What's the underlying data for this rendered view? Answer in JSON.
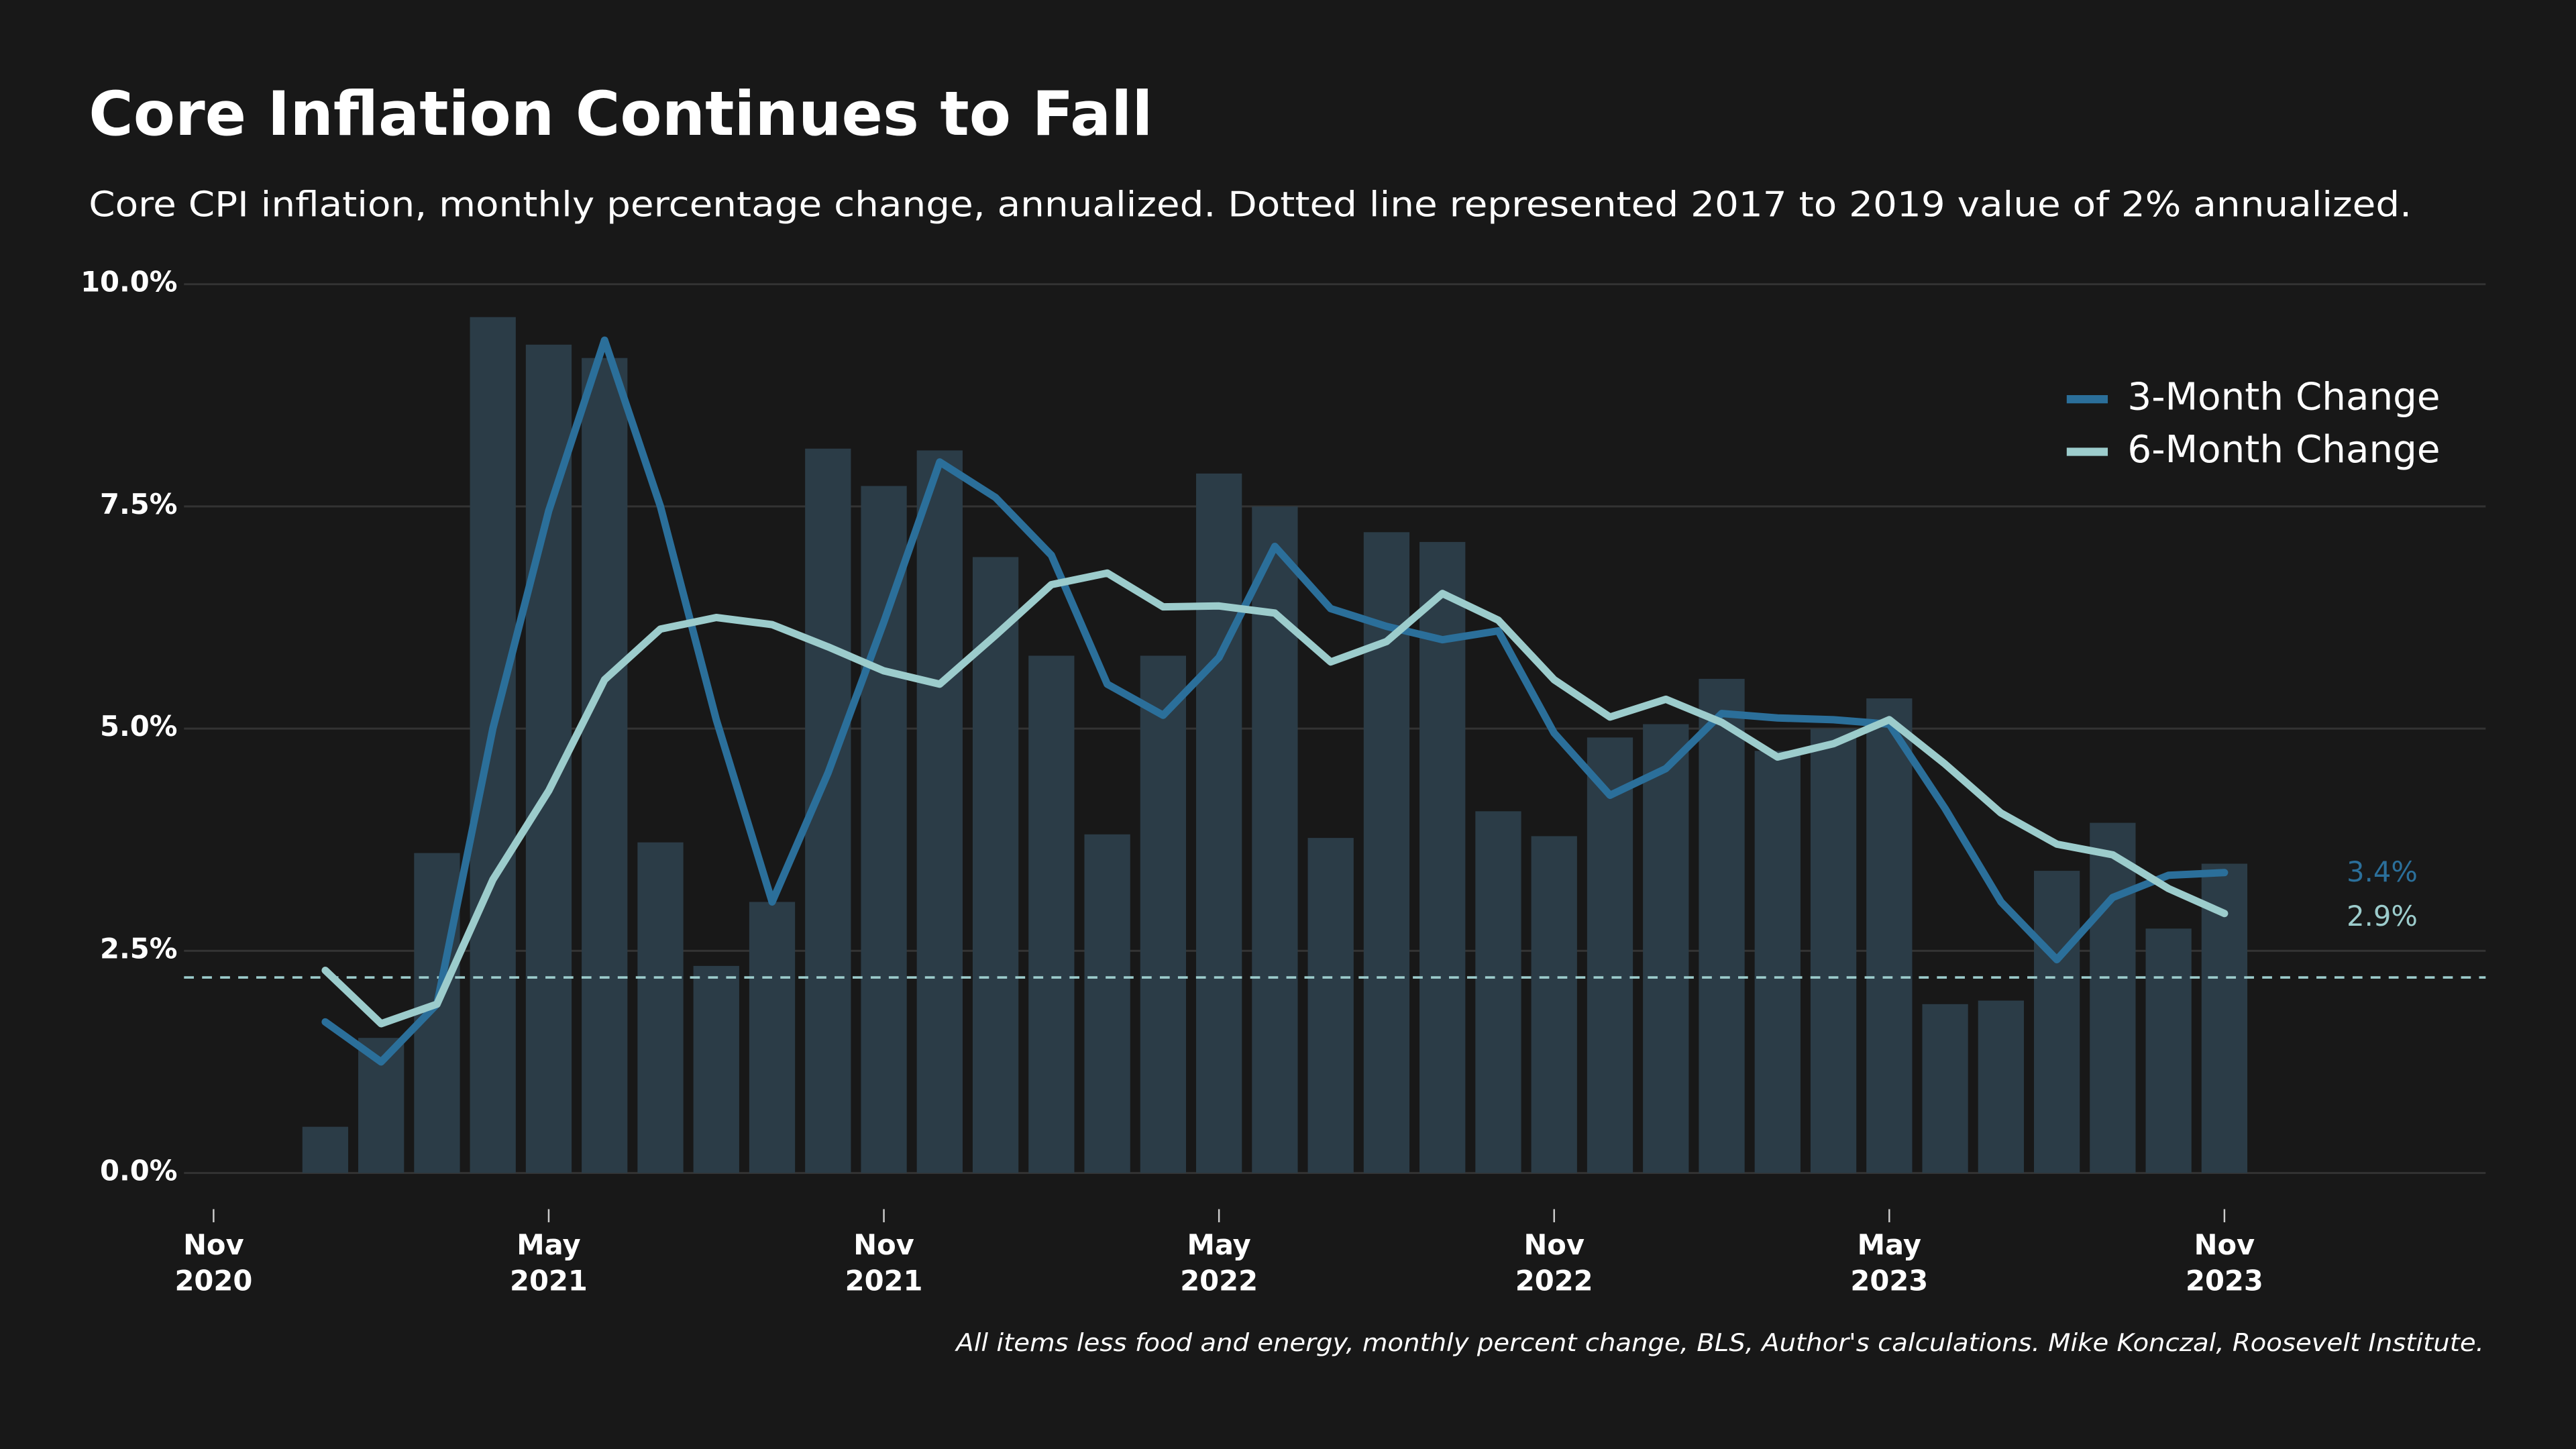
{
  "chart_data": {
    "type": "combo",
    "title": "Core Inflation Continues to Fall",
    "subtitle": "Core CPI inflation, monthly percentage change, annualized. Dotted line represented 2017 to 2019 value of 2% annualized.",
    "source": "All items less food and energy, monthly percent change, BLS, Author's calculations. Mike Konczal, Roosevelt Institute.",
    "x": [
      "Jan 2021",
      "Feb 2021",
      "Mar 2021",
      "Apr 2021",
      "May 2021",
      "Jun 2021",
      "Jul 2021",
      "Aug 2021",
      "Sep 2021",
      "Oct 2021",
      "Nov 2021",
      "Dec 2021",
      "Jan 2022",
      "Feb 2022",
      "Mar 2022",
      "Apr 2022",
      "May 2022",
      "Jun 2022",
      "Jul 2022",
      "Aug 2022",
      "Sep 2022",
      "Oct 2022",
      "Nov 2022",
      "Dec 2022",
      "Jan 2023",
      "Feb 2023",
      "Mar 2023",
      "Apr 2023",
      "May 2023",
      "Jun 2023",
      "Jul 2023",
      "Aug 2023",
      "Sep 2023",
      "Oct 2023",
      "Nov 2023"
    ],
    "bars": {
      "color": "#2b3c47",
      "values": [
        0.52,
        1.52,
        3.6,
        9.63,
        9.32,
        9.17,
        3.72,
        2.33,
        3.05,
        8.15,
        7.73,
        8.13,
        6.93,
        5.82,
        3.81,
        5.82,
        7.87,
        7.5,
        3.77,
        7.21,
        7.1,
        4.07,
        3.79,
        4.9,
        5.05,
        5.56,
        4.75,
        5.0,
        5.34,
        1.9,
        1.94,
        3.4,
        3.94,
        2.75,
        3.48
      ]
    },
    "series": [
      {
        "name": "3-Month Change",
        "color": "#2b6f9a",
        "end_label": "3.4%",
        "values": [
          1.7,
          1.25,
          1.9,
          5.0,
          7.45,
          9.37,
          7.5,
          5.1,
          3.05,
          4.5,
          6.2,
          8.0,
          7.6,
          6.95,
          5.5,
          5.15,
          5.8,
          7.05,
          6.35,
          6.15,
          6.0,
          6.1,
          4.95,
          4.25,
          4.55,
          5.17,
          5.12,
          5.1,
          5.05,
          4.1,
          3.05,
          2.4,
          3.1,
          3.35,
          3.38
        ]
      },
      {
        "name": "6-Month Change",
        "color": "#9ccccc",
        "end_label": "2.9%",
        "values": [
          2.28,
          1.68,
          1.9,
          3.3,
          4.3,
          5.55,
          6.12,
          6.25,
          6.17,
          5.92,
          5.65,
          5.5,
          6.05,
          6.62,
          6.75,
          6.37,
          6.38,
          6.3,
          5.75,
          5.98,
          6.52,
          6.22,
          5.55,
          5.13,
          5.33,
          5.07,
          4.68,
          4.83,
          5.1,
          4.6,
          4.05,
          3.7,
          3.58,
          3.2,
          2.92
        ]
      }
    ],
    "reference_line": {
      "value": 2.2,
      "color": "#9ccccc"
    },
    "xlim": [
      "Nov 2020",
      "Apr 2024"
    ],
    "xticks": [
      {
        "value": "Nov 2020",
        "label": [
          "Nov",
          "2020"
        ]
      },
      {
        "value": "May 2021",
        "label": [
          "May",
          "2021"
        ]
      },
      {
        "value": "Nov 2021",
        "label": [
          "Nov",
          "2021"
        ]
      },
      {
        "value": "May 2022",
        "label": [
          "May",
          "2022"
        ]
      },
      {
        "value": "Nov 2022",
        "label": [
          "Nov",
          "2022"
        ]
      },
      {
        "value": "May 2023",
        "label": [
          "May",
          "2023"
        ]
      },
      {
        "value": "Nov 2023",
        "label": [
          "Nov",
          "2023"
        ]
      }
    ],
    "ylim": [
      0,
      10
    ],
    "yticks": [
      {
        "value": 0,
        "label": "0.0%"
      },
      {
        "value": 2.5,
        "label": "2.5%"
      },
      {
        "value": 5,
        "label": "5.0%"
      },
      {
        "value": 7.5,
        "label": "7.5%"
      },
      {
        "value": 10,
        "label": "10.0%"
      }
    ],
    "grid": true
  }
}
